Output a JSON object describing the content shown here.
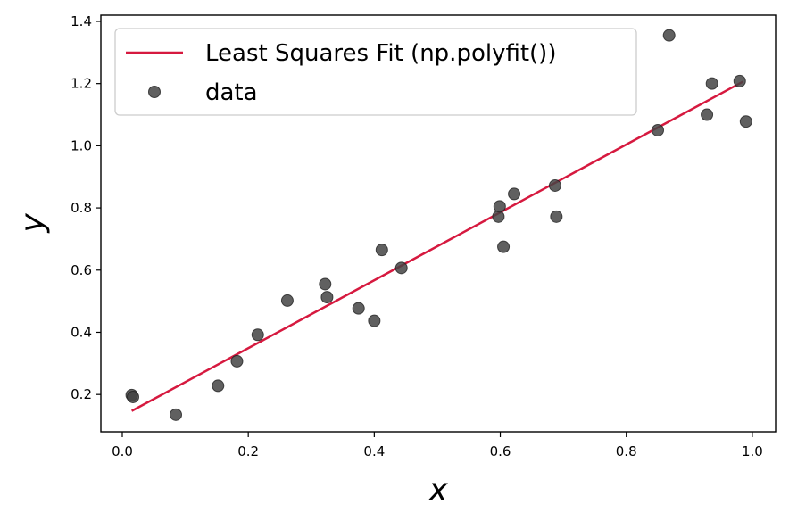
{
  "chart_data": {
    "type": "scatter",
    "title": "",
    "xlabel": "x",
    "ylabel": "y",
    "xlim": [
      -0.034,
      1.037
    ],
    "ylim": [
      0.08,
      1.42
    ],
    "xticks": [
      0.0,
      0.2,
      0.4,
      0.6,
      0.8,
      1.0
    ],
    "xtick_labels": [
      "0.0",
      "0.2",
      "0.4",
      "0.6",
      "0.8",
      "1.0"
    ],
    "yticks": [
      0.2,
      0.4,
      0.6,
      0.8,
      1.0,
      1.2,
      1.4
    ],
    "ytick_labels": [
      "0.2",
      "0.4",
      "0.6",
      "0.8",
      "1.0",
      "1.2",
      "1.4"
    ],
    "grid": false,
    "legend_position": "top-left",
    "series": [
      {
        "name": "Least Squares Fit (np.polyfit())",
        "kind": "line",
        "color": "#d6193f",
        "x": [
          0.015,
          0.985
        ],
        "y": [
          0.147,
          1.206
        ]
      },
      {
        "name": "data",
        "kind": "scatter",
        "color": "#444444",
        "x": [
          0.015,
          0.017,
          0.085,
          0.152,
          0.182,
          0.215,
          0.262,
          0.322,
          0.325,
          0.375,
          0.4,
          0.412,
          0.443,
          0.597,
          0.599,
          0.605,
          0.622,
          0.687,
          0.689,
          0.85,
          0.868,
          0.928,
          0.936,
          0.98,
          0.99
        ],
        "y": [
          0.198,
          0.192,
          0.135,
          0.228,
          0.307,
          0.392,
          0.502,
          0.555,
          0.513,
          0.477,
          0.437,
          0.665,
          0.607,
          0.772,
          0.805,
          0.675,
          0.845,
          0.872,
          0.772,
          1.05,
          1.355,
          1.1,
          1.2,
          1.208,
          1.078
        ]
      }
    ]
  }
}
